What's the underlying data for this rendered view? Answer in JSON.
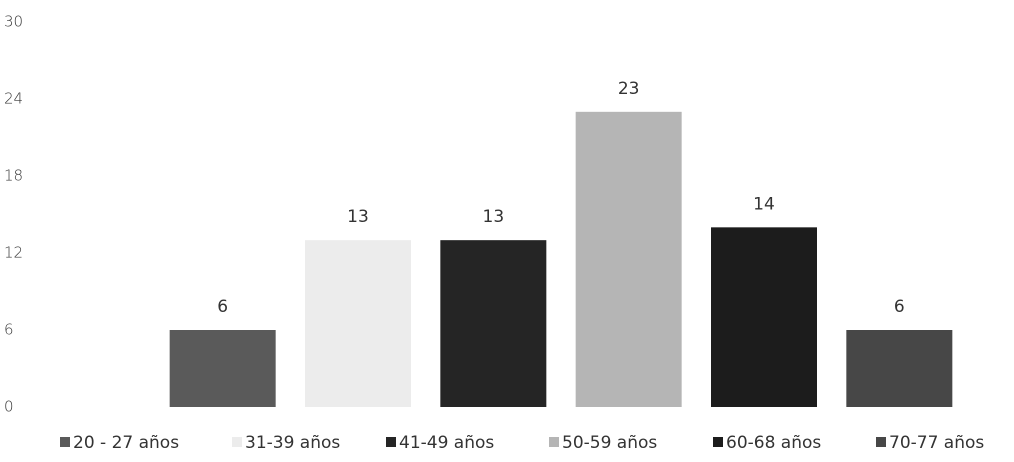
{
  "chart_data": {
    "type": "bar",
    "categories": [
      null
    ],
    "series": [
      {
        "name": "20 - 27 años",
        "color": "#5a5a5a",
        "values": [
          6
        ]
      },
      {
        "name": "31-39 años",
        "color": "#ececec",
        "values": [
          13
        ]
      },
      {
        "name": "41-49 años",
        "color": "#252525",
        "values": [
          13
        ]
      },
      {
        "name": "50-59 años",
        "color": "#b5b5b5",
        "values": [
          23
        ]
      },
      {
        "name": "60-68 años",
        "color": "#1c1c1c",
        "values": [
          14
        ]
      },
      {
        "name": "70-77 años",
        "color": "#474747",
        "values": [
          6
        ]
      }
    ],
    "ylim": [
      0,
      30
    ],
    "yticks": [
      0,
      6,
      12,
      18,
      24,
      30
    ],
    "grid": false,
    "legend": "bottom"
  }
}
